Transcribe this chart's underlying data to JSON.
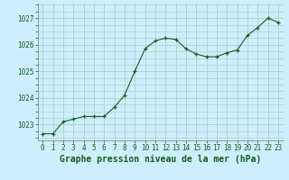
{
  "x": [
    0,
    1,
    2,
    3,
    4,
    5,
    6,
    7,
    8,
    9,
    10,
    11,
    12,
    13,
    14,
    15,
    16,
    17,
    18,
    19,
    20,
    21,
    22,
    23
  ],
  "y": [
    1022.65,
    1022.65,
    1023.1,
    1023.2,
    1023.3,
    1023.3,
    1023.3,
    1023.65,
    1024.1,
    1025.0,
    1025.85,
    1026.15,
    1026.25,
    1026.2,
    1025.85,
    1025.65,
    1025.55,
    1025.55,
    1025.7,
    1025.8,
    1026.35,
    1026.65,
    1027.0,
    1026.85
  ],
  "title": "Graphe pression niveau de la mer (hPa)",
  "xlim": [
    -0.5,
    23.5
  ],
  "ylim": [
    1022.4,
    1027.55
  ],
  "yticks": [
    1023,
    1024,
    1025,
    1026,
    1027
  ],
  "xticks": [
    0,
    1,
    2,
    3,
    4,
    5,
    6,
    7,
    8,
    9,
    10,
    11,
    12,
    13,
    14,
    15,
    16,
    17,
    18,
    19,
    20,
    21,
    22,
    23
  ],
  "line_color": "#1a5c1a",
  "marker_color": "#1a5c1a",
  "bg_color": "#cceeff",
  "grid_color": "#aaccbb",
  "title_color": "#1a5c1a",
  "title_fontsize": 7.0,
  "tick_fontsize": 5.5
}
